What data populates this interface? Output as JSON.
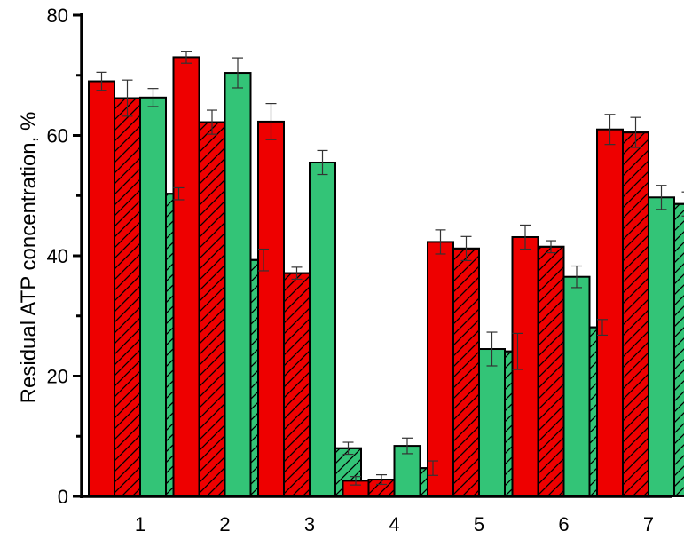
{
  "chart_data": {
    "type": "bar",
    "title": "",
    "xlabel": "",
    "ylabel": "Residual ATP concentration, %",
    "ylim": [
      0,
      80
    ],
    "yticks": [
      0,
      20,
      40,
      60,
      80
    ],
    "yticks_minor": [
      10,
      30,
      50,
      70
    ],
    "grid": false,
    "legend": null,
    "categories": [
      "1",
      "2",
      "3",
      "4",
      "5",
      "6",
      "7"
    ],
    "series": [
      {
        "name": "red solid",
        "color": "#ee0000",
        "hatched": false,
        "values": [
          69.0,
          73.0,
          62.3,
          2.6,
          42.3,
          43.1,
          61.0
        ],
        "errors": [
          1.5,
          1.0,
          3.0,
          0.7,
          2.0,
          2.0,
          2.5
        ]
      },
      {
        "name": "red hatched",
        "color": "#ee0000",
        "hatched": true,
        "values": [
          66.2,
          62.2,
          37.1,
          2.8,
          41.2,
          41.5,
          60.5
        ],
        "errors": [
          3.0,
          2.0,
          1.0,
          0.8,
          2.0,
          1.0,
          2.5
        ]
      },
      {
        "name": "green solid",
        "color": "#33c477",
        "hatched": false,
        "values": [
          66.3,
          70.4,
          55.5,
          8.4,
          24.5,
          36.5,
          49.7
        ],
        "errors": [
          1.5,
          2.5,
          2.0,
          1.3,
          2.8,
          1.8,
          2.0
        ]
      },
      {
        "name": "green hatched",
        "color": "#33c477",
        "hatched": true,
        "values": [
          50.3,
          39.3,
          8.0,
          4.7,
          24.1,
          28.1,
          48.6
        ],
        "errors": [
          1.0,
          1.8,
          1.0,
          1.2,
          3.0,
          1.3,
          2.0
        ]
      }
    ]
  }
}
